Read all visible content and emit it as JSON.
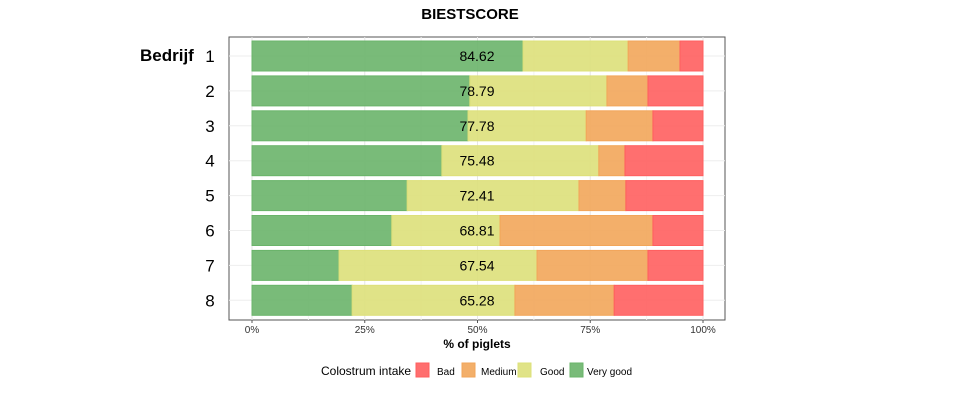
{
  "chart_data": {
    "type": "bar",
    "orientation": "horizontal",
    "stacked": true,
    "title": "BIESTSCORE",
    "ylabel": "Bedrijf",
    "xlabel": "% of piglets",
    "xlim": [
      0,
      100
    ],
    "xticks": [
      "0%",
      "25%",
      "50%",
      "75%",
      "100%"
    ],
    "categories": [
      "1",
      "2",
      "3",
      "4",
      "5",
      "6",
      "7",
      "8"
    ],
    "scores": [
      "84.62",
      "78.79",
      "77.78",
      "75.48",
      "72.41",
      "68.81",
      "67.54",
      "65.28"
    ],
    "series": [
      {
        "name": "Very good",
        "color": "#6ab46a",
        "values": [
          60.1,
          48.3,
          47.9,
          42.1,
          34.4,
          31.0,
          19.3,
          22.2
        ]
      },
      {
        "name": "Good",
        "color": "#dde07a",
        "values": [
          23.3,
          30.4,
          26.2,
          34.8,
          38.1,
          24.0,
          43.9,
          36.1
        ]
      },
      {
        "name": "Medium",
        "color": "#f2a65a",
        "values": [
          11.5,
          9.1,
          14.8,
          5.8,
          10.4,
          33.9,
          24.6,
          22.0
        ]
      },
      {
        "name": "Bad",
        "color": "#ff5f5f",
        "values": [
          5.1,
          12.2,
          11.1,
          17.3,
          17.1,
          11.1,
          12.2,
          19.7
        ]
      }
    ],
    "legend": {
      "title": "Colostrum intake",
      "position": "bottom",
      "order": [
        "Bad",
        "Medium",
        "Good",
        "Very good"
      ]
    },
    "grid": true
  }
}
